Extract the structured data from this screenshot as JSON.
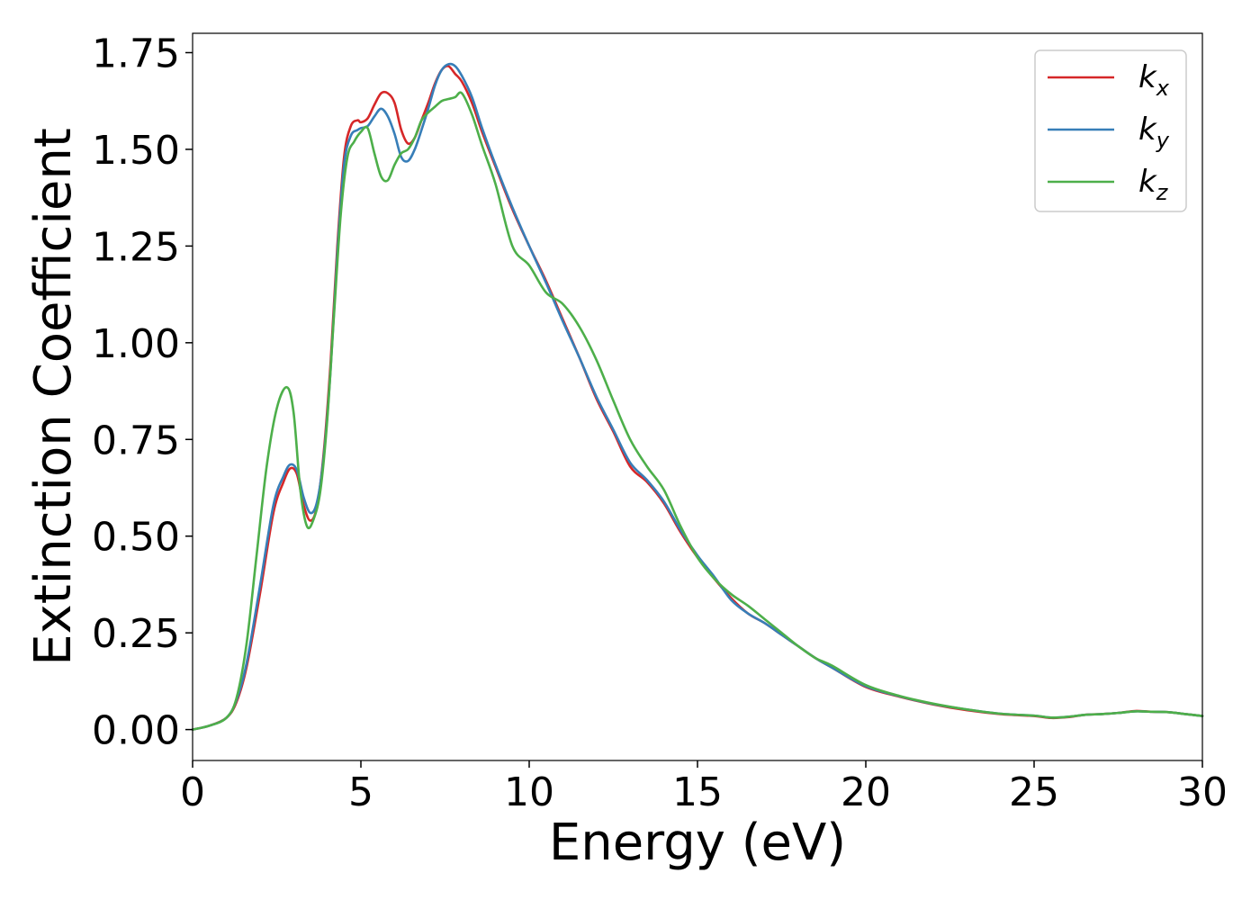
{
  "chart_data": {
    "type": "line",
    "title": "",
    "xlabel": "Energy (eV)",
    "ylabel": "Extinction Coefficient",
    "xlim": [
      0,
      30
    ],
    "ylim": [
      -0.08,
      1.8
    ],
    "xticks": [
      0,
      5,
      10,
      15,
      20,
      25,
      30
    ],
    "xtick_labels": [
      "0",
      "5",
      "10",
      "15",
      "20",
      "25",
      "30"
    ],
    "yticks": [
      0.0,
      0.25,
      0.5,
      0.75,
      1.0,
      1.25,
      1.5,
      1.75
    ],
    "ytick_labels": [
      "0.00",
      "0.25",
      "0.50",
      "0.75",
      "1.00",
      "1.25",
      "1.50",
      "1.75"
    ],
    "grid": false,
    "legend_position": "top-right",
    "series": [
      {
        "name": "k_x",
        "label_base": "k",
        "label_sub": "x",
        "color": "#d62728",
        "x": [
          0,
          0.5,
          1.0,
          1.3,
          1.6,
          2.0,
          2.4,
          2.7,
          2.9,
          3.1,
          3.3,
          3.5,
          3.7,
          3.9,
          4.1,
          4.3,
          4.5,
          4.7,
          4.9,
          5.0,
          5.2,
          5.4,
          5.6,
          5.8,
          6.0,
          6.2,
          6.4,
          6.6,
          6.8,
          7.0,
          7.2,
          7.4,
          7.6,
          7.8,
          8.0,
          8.3,
          8.6,
          9.0,
          9.5,
          10.0,
          10.5,
          11.0,
          11.5,
          12.0,
          12.5,
          13.0,
          13.5,
          14.0,
          14.5,
          15.0,
          15.5,
          16.0,
          16.5,
          17.0,
          17.5,
          18.0,
          18.5,
          19.0,
          20.0,
          21.0,
          22.0,
          23.0,
          24.0,
          25.0,
          25.5,
          26.0,
          26.5,
          27.0,
          27.5,
          28.0,
          28.5,
          29.0,
          29.5,
          30.0
        ],
        "y": [
          0.0,
          0.01,
          0.03,
          0.07,
          0.16,
          0.35,
          0.56,
          0.64,
          0.675,
          0.66,
          0.58,
          0.54,
          0.58,
          0.72,
          0.95,
          1.25,
          1.48,
          1.56,
          1.575,
          1.57,
          1.58,
          1.615,
          1.645,
          1.645,
          1.62,
          1.55,
          1.515,
          1.53,
          1.575,
          1.62,
          1.67,
          1.705,
          1.715,
          1.695,
          1.675,
          1.62,
          1.545,
          1.455,
          1.345,
          1.25,
          1.16,
          1.06,
          0.96,
          0.855,
          0.77,
          0.68,
          0.64,
          0.585,
          0.51,
          0.445,
          0.39,
          0.34,
          0.3,
          0.275,
          0.245,
          0.215,
          0.185,
          0.16,
          0.11,
          0.085,
          0.065,
          0.05,
          0.04,
          0.035,
          0.03,
          0.032,
          0.038,
          0.04,
          0.043,
          0.048,
          0.046,
          0.045,
          0.04,
          0.035
        ]
      },
      {
        "name": "k_y",
        "label_base": "k",
        "label_sub": "y",
        "color": "#377eb8",
        "x": [
          0,
          0.5,
          1.0,
          1.3,
          1.6,
          2.0,
          2.4,
          2.7,
          2.9,
          3.1,
          3.3,
          3.5,
          3.7,
          3.9,
          4.1,
          4.3,
          4.5,
          4.7,
          4.9,
          5.0,
          5.2,
          5.4,
          5.6,
          5.8,
          6.0,
          6.2,
          6.4,
          6.6,
          6.8,
          7.0,
          7.2,
          7.4,
          7.6,
          7.8,
          8.0,
          8.3,
          8.6,
          9.0,
          9.5,
          10.0,
          10.5,
          11.0,
          11.5,
          12.0,
          12.5,
          13.0,
          13.5,
          14.0,
          14.5,
          15.0,
          15.5,
          16.0,
          16.5,
          17.0,
          17.5,
          18.0,
          18.5,
          19.0,
          20.0,
          21.0,
          22.0,
          23.0,
          24.0,
          25.0,
          25.5,
          26.0,
          26.5,
          27.0,
          27.5,
          28.0,
          28.5,
          29.0,
          29.5,
          30.0
        ],
        "y": [
          0.0,
          0.01,
          0.03,
          0.075,
          0.17,
          0.37,
          0.58,
          0.655,
          0.685,
          0.67,
          0.6,
          0.56,
          0.59,
          0.71,
          0.93,
          1.23,
          1.46,
          1.535,
          1.55,
          1.555,
          1.56,
          1.585,
          1.605,
          1.585,
          1.54,
          1.48,
          1.47,
          1.5,
          1.55,
          1.605,
          1.665,
          1.705,
          1.72,
          1.715,
          1.69,
          1.635,
          1.555,
          1.46,
          1.35,
          1.25,
          1.155,
          1.055,
          0.96,
          0.86,
          0.775,
          0.69,
          0.645,
          0.59,
          0.515,
          0.45,
          0.395,
          0.335,
          0.3,
          0.275,
          0.245,
          0.215,
          0.185,
          0.16,
          0.112,
          0.086,
          0.066,
          0.052,
          0.041,
          0.036,
          0.031,
          0.033,
          0.038,
          0.04,
          0.043,
          0.047,
          0.046,
          0.045,
          0.04,
          0.035
        ]
      },
      {
        "name": "k_z",
        "label_base": "k",
        "label_sub": "z",
        "color": "#4daf4a",
        "x": [
          0,
          0.5,
          1.0,
          1.3,
          1.6,
          1.9,
          2.2,
          2.5,
          2.8,
          3.0,
          3.2,
          3.4,
          3.6,
          3.8,
          4.0,
          4.2,
          4.4,
          4.6,
          4.8,
          5.0,
          5.2,
          5.4,
          5.6,
          5.8,
          6.0,
          6.2,
          6.4,
          6.6,
          6.8,
          7.0,
          7.2,
          7.4,
          7.6,
          7.8,
          8.0,
          8.3,
          8.6,
          9.0,
          9.5,
          10.0,
          10.5,
          11.0,
          11.5,
          12.0,
          12.5,
          13.0,
          13.5,
          14.0,
          14.5,
          15.0,
          15.5,
          16.0,
          16.5,
          17.0,
          17.5,
          18.0,
          18.5,
          19.0,
          20.0,
          21.0,
          22.0,
          23.0,
          24.0,
          25.0,
          25.5,
          26.0,
          26.5,
          27.0,
          27.5,
          28.0,
          28.5,
          29.0,
          29.5,
          30.0
        ],
        "y": [
          0.0,
          0.01,
          0.03,
          0.08,
          0.22,
          0.45,
          0.68,
          0.83,
          0.885,
          0.82,
          0.62,
          0.525,
          0.545,
          0.62,
          0.8,
          1.07,
          1.33,
          1.48,
          1.52,
          1.545,
          1.555,
          1.49,
          1.43,
          1.42,
          1.46,
          1.49,
          1.5,
          1.53,
          1.575,
          1.595,
          1.61,
          1.625,
          1.63,
          1.635,
          1.645,
          1.59,
          1.51,
          1.41,
          1.25,
          1.2,
          1.13,
          1.1,
          1.04,
          0.955,
          0.85,
          0.75,
          0.68,
          0.62,
          0.525,
          0.445,
          0.39,
          0.35,
          0.32,
          0.285,
          0.25,
          0.215,
          0.185,
          0.165,
          0.115,
          0.087,
          0.067,
          0.052,
          0.041,
          0.036,
          0.031,
          0.033,
          0.038,
          0.04,
          0.043,
          0.047,
          0.046,
          0.045,
          0.04,
          0.035
        ]
      }
    ]
  }
}
